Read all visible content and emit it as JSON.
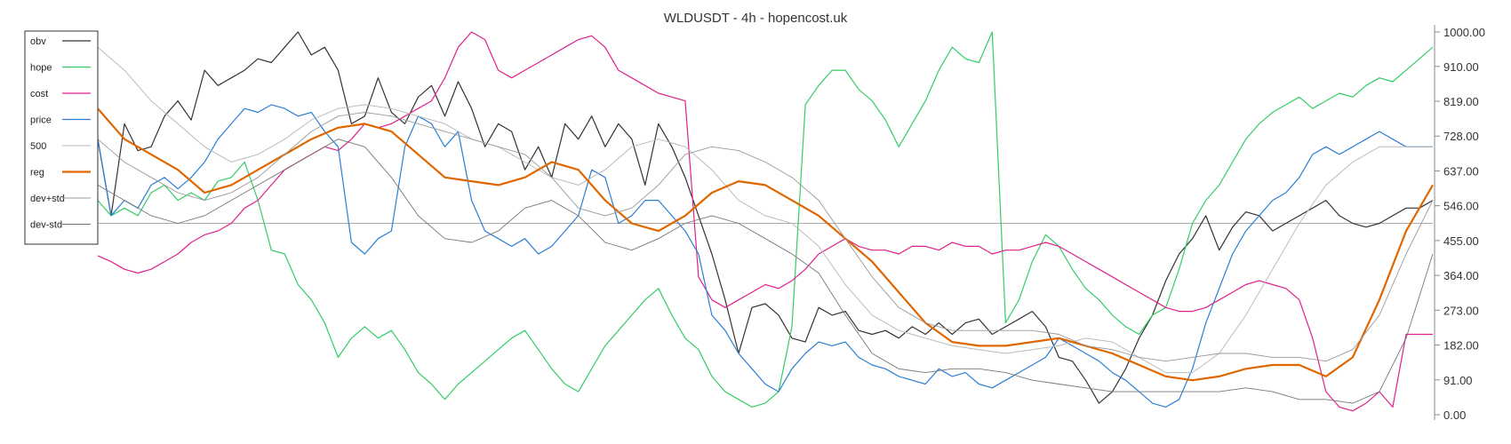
{
  "chart_data": {
    "type": "line",
    "title": "WLDUSDT - 4h - hopencost.uk",
    "xlabel": "",
    "ylabel": "",
    "ylim": [
      0,
      1000
    ],
    "y_ticks": [
      "0.00",
      "91.00",
      "182.00",
      "273.00",
      "364.00",
      "455.00",
      "546.00",
      "637.00",
      "728.00",
      "819.00",
      "910.00",
      "1000.00"
    ],
    "y_tick_values": [
      0,
      91,
      182,
      273,
      364,
      455,
      546,
      637,
      728,
      819,
      910,
      1000
    ],
    "x_range": [
      0,
      100
    ],
    "hline": 500,
    "grid": false,
    "legend_position": "top-left",
    "series": [
      {
        "name": "obv",
        "color": "#333333",
        "width": 1.2,
        "x": [
          0,
          1,
          2,
          3,
          4,
          5,
          6,
          7,
          8,
          9,
          10,
          11,
          12,
          13,
          14,
          15,
          16,
          17,
          18,
          19,
          20,
          21,
          22,
          23,
          24,
          25,
          26,
          27,
          28,
          29,
          30,
          31,
          32,
          33,
          34,
          35,
          36,
          37,
          38,
          39,
          40,
          41,
          42,
          43,
          44,
          45,
          46,
          47,
          48,
          49,
          50,
          51,
          52,
          53,
          54,
          55,
          56,
          57,
          58,
          59,
          60,
          61,
          62,
          63,
          64,
          65,
          66,
          67,
          68,
          69,
          70,
          71,
          72,
          73,
          74,
          75,
          76,
          77,
          78,
          79,
          80,
          81,
          82,
          83,
          84,
          85,
          86,
          87,
          88,
          89,
          90,
          91,
          92,
          93,
          94,
          95,
          96,
          97,
          98,
          99,
          100
        ],
        "values": [
          720,
          520,
          760,
          690,
          700,
          780,
          820,
          770,
          900,
          860,
          880,
          900,
          930,
          920,
          960,
          1000,
          940,
          960,
          900,
          760,
          780,
          880,
          790,
          760,
          830,
          860,
          780,
          870,
          800,
          700,
          760,
          740,
          640,
          700,
          620,
          760,
          720,
          780,
          700,
          760,
          720,
          600,
          760,
          700,
          620,
          520,
          420,
          300,
          160,
          280,
          290,
          260,
          200,
          190,
          280,
          260,
          270,
          220,
          210,
          220,
          200,
          230,
          210,
          240,
          210,
          240,
          250,
          210,
          230,
          250,
          270,
          230,
          150,
          140,
          90,
          30,
          60,
          120,
          200,
          260,
          350,
          420,
          460,
          520,
          430,
          490,
          530,
          520,
          480,
          500,
          520,
          540,
          560,
          520,
          500,
          490,
          500,
          520,
          540,
          540,
          560
        ]
      },
      {
        "name": "hope",
        "color": "#33cc66",
        "width": 1.2,
        "x": [
          0,
          1,
          2,
          3,
          4,
          5,
          6,
          7,
          8,
          9,
          10,
          11,
          12,
          13,
          14,
          15,
          16,
          17,
          18,
          19,
          20,
          21,
          22,
          23,
          24,
          25,
          26,
          27,
          28,
          29,
          30,
          31,
          32,
          33,
          34,
          35,
          36,
          37,
          38,
          39,
          40,
          41,
          42,
          43,
          44,
          45,
          46,
          47,
          48,
          49,
          50,
          51,
          52,
          53,
          54,
          55,
          56,
          57,
          58,
          59,
          60,
          61,
          62,
          63,
          64,
          65,
          66,
          67,
          68,
          69,
          70,
          71,
          72,
          73,
          74,
          75,
          76,
          77,
          78,
          79,
          80,
          81,
          82,
          83,
          84,
          85,
          86,
          87,
          88,
          89,
          90,
          91,
          92,
          93,
          94,
          95,
          96,
          97,
          98,
          99,
          100
        ],
        "values": [
          560,
          520,
          540,
          520,
          580,
          600,
          560,
          580,
          560,
          610,
          620,
          660,
          560,
          430,
          420,
          340,
          300,
          240,
          150,
          200,
          230,
          200,
          220,
          170,
          110,
          80,
          40,
          80,
          110,
          140,
          170,
          200,
          220,
          170,
          120,
          80,
          60,
          120,
          180,
          220,
          260,
          300,
          330,
          260,
          200,
          170,
          100,
          60,
          40,
          20,
          30,
          60,
          230,
          810,
          860,
          900,
          900,
          850,
          820,
          770,
          700,
          760,
          820,
          900,
          960,
          930,
          920,
          1000,
          240,
          300,
          400,
          470,
          440,
          380,
          330,
          300,
          260,
          230,
          210,
          260,
          280,
          380,
          500,
          560,
          600,
          660,
          720,
          760,
          790,
          810,
          830,
          800,
          820,
          840,
          830,
          860,
          880,
          870,
          900,
          930,
          960
        ]
      },
      {
        "name": "cost",
        "color": "#e0218a",
        "width": 1.2,
        "x": [
          0,
          1,
          2,
          3,
          4,
          5,
          6,
          7,
          8,
          9,
          10,
          11,
          12,
          13,
          14,
          15,
          16,
          17,
          18,
          19,
          20,
          21,
          22,
          23,
          24,
          25,
          26,
          27,
          28,
          29,
          30,
          31,
          32,
          33,
          34,
          35,
          36,
          37,
          38,
          39,
          40,
          41,
          42,
          43,
          44,
          45,
          46,
          47,
          48,
          49,
          50,
          51,
          52,
          53,
          54,
          55,
          56,
          57,
          58,
          59,
          60,
          61,
          62,
          63,
          64,
          65,
          66,
          67,
          68,
          69,
          70,
          71,
          72,
          73,
          74,
          75,
          76,
          77,
          78,
          79,
          80,
          81,
          82,
          83,
          84,
          85,
          86,
          87,
          88,
          89,
          90,
          91,
          92,
          93,
          94,
          95,
          96,
          97,
          98,
          99,
          100
        ],
        "values": [
          415,
          400,
          380,
          370,
          380,
          400,
          420,
          450,
          470,
          480,
          500,
          540,
          560,
          600,
          640,
          660,
          680,
          700,
          690,
          720,
          760,
          750,
          760,
          780,
          800,
          820,
          880,
          960,
          1000,
          980,
          900,
          880,
          900,
          920,
          940,
          960,
          980,
          990,
          960,
          900,
          880,
          860,
          840,
          830,
          820,
          360,
          300,
          280,
          300,
          320,
          340,
          330,
          350,
          380,
          420,
          440,
          460,
          440,
          430,
          430,
          420,
          440,
          440,
          430,
          450,
          440,
          440,
          420,
          430,
          430,
          440,
          450,
          440,
          420,
          400,
          380,
          360,
          340,
          320,
          300,
          280,
          270,
          270,
          280,
          300,
          320,
          340,
          350,
          340,
          330,
          300,
          200,
          60,
          20,
          10,
          30,
          60,
          20,
          210,
          210,
          210
        ]
      },
      {
        "name": "price",
        "color": "#2a7fd4",
        "width": 1.2,
        "x": [
          0,
          1,
          2,
          3,
          4,
          5,
          6,
          7,
          8,
          9,
          10,
          11,
          12,
          13,
          14,
          15,
          16,
          17,
          18,
          19,
          20,
          21,
          22,
          23,
          24,
          25,
          26,
          27,
          28,
          29,
          30,
          31,
          32,
          33,
          34,
          35,
          36,
          37,
          38,
          39,
          40,
          41,
          42,
          43,
          44,
          45,
          46,
          47,
          48,
          49,
          50,
          51,
          52,
          53,
          54,
          55,
          56,
          57,
          58,
          59,
          60,
          61,
          62,
          63,
          64,
          65,
          66,
          67,
          68,
          69,
          70,
          71,
          72,
          73,
          74,
          75,
          76,
          77,
          78,
          79,
          80,
          81,
          82,
          83,
          84,
          85,
          86,
          87,
          88,
          89,
          90,
          91,
          92,
          93,
          94,
          95,
          96,
          97,
          98,
          99,
          100
        ],
        "values": [
          720,
          520,
          560,
          540,
          600,
          620,
          590,
          620,
          660,
          720,
          760,
          800,
          790,
          810,
          800,
          780,
          790,
          740,
          700,
          450,
          420,
          460,
          480,
          700,
          780,
          760,
          700,
          740,
          560,
          480,
          460,
          440,
          460,
          420,
          440,
          480,
          520,
          640,
          620,
          500,
          520,
          560,
          560,
          520,
          480,
          420,
          260,
          220,
          160,
          120,
          80,
          60,
          120,
          160,
          190,
          180,
          190,
          150,
          130,
          120,
          100,
          90,
          80,
          120,
          100,
          110,
          80,
          70,
          90,
          110,
          130,
          150,
          200,
          180,
          160,
          140,
          110,
          90,
          60,
          30,
          20,
          40,
          120,
          240,
          330,
          420,
          480,
          520,
          560,
          580,
          620,
          680,
          700,
          680,
          700,
          720,
          740,
          720,
          700,
          700,
          700
        ]
      },
      {
        "name": "500",
        "color": "#bbbbbb",
        "width": 1.0,
        "x": [
          0,
          2,
          4,
          6,
          8,
          10,
          12,
          14,
          16,
          18,
          20,
          22,
          24,
          26,
          28,
          30,
          32,
          34,
          36,
          38,
          40,
          42,
          44,
          46,
          48,
          50,
          52,
          54,
          56,
          58,
          60,
          62,
          64,
          66,
          68,
          70,
          72,
          74,
          76,
          78,
          80,
          82,
          84,
          86,
          88,
          90,
          92,
          94,
          96,
          98,
          100
        ],
        "values": [
          960,
          900,
          820,
          760,
          700,
          660,
          680,
          720,
          770,
          800,
          810,
          800,
          780,
          760,
          720,
          700,
          660,
          620,
          600,
          640,
          700,
          720,
          700,
          640,
          560,
          520,
          500,
          440,
          340,
          260,
          220,
          200,
          180,
          170,
          160,
          170,
          180,
          200,
          190,
          150,
          110,
          110,
          160,
          260,
          380,
          500,
          600,
          660,
          700,
          700,
          700
        ]
      },
      {
        "name": "reg",
        "color": "#e06600",
        "width": 2.2,
        "x": [
          0,
          2,
          4,
          6,
          8,
          10,
          12,
          14,
          16,
          18,
          20,
          22,
          24,
          26,
          28,
          30,
          32,
          34,
          36,
          38,
          40,
          42,
          44,
          46,
          48,
          50,
          52,
          54,
          56,
          58,
          60,
          62,
          64,
          66,
          68,
          70,
          72,
          74,
          76,
          78,
          80,
          82,
          84,
          86,
          88,
          90,
          92,
          94,
          96,
          98,
          100
        ],
        "values": [
          800,
          720,
          680,
          640,
          580,
          600,
          640,
          680,
          720,
          750,
          760,
          740,
          680,
          620,
          610,
          600,
          620,
          660,
          640,
          560,
          500,
          480,
          520,
          580,
          610,
          600,
          560,
          520,
          460,
          400,
          320,
          240,
          190,
          180,
          180,
          190,
          200,
          180,
          160,
          130,
          100,
          90,
          100,
          120,
          130,
          130,
          100,
          150,
          300,
          480,
          600
        ]
      },
      {
        "name": "dev+std",
        "color": "#999999",
        "width": 0.9,
        "x": [
          0,
          2,
          4,
          6,
          8,
          10,
          12,
          14,
          16,
          18,
          20,
          22,
          24,
          26,
          28,
          30,
          32,
          34,
          36,
          38,
          40,
          42,
          44,
          46,
          48,
          50,
          52,
          54,
          56,
          58,
          60,
          62,
          64,
          66,
          68,
          70,
          72,
          74,
          76,
          78,
          80,
          82,
          84,
          86,
          88,
          90,
          92,
          94,
          96,
          98,
          100
        ],
        "values": [
          720,
          660,
          620,
          580,
          560,
          580,
          620,
          680,
          740,
          780,
          790,
          780,
          760,
          740,
          720,
          700,
          680,
          620,
          540,
          520,
          540,
          600,
          680,
          700,
          690,
          660,
          620,
          560,
          460,
          360,
          280,
          240,
          220,
          220,
          220,
          220,
          210,
          180,
          170,
          150,
          140,
          150,
          160,
          160,
          150,
          150,
          140,
          170,
          260,
          420,
          560
        ]
      },
      {
        "name": "dev-std",
        "color": "#777777",
        "width": 0.9,
        "x": [
          0,
          2,
          4,
          6,
          8,
          10,
          12,
          14,
          16,
          18,
          20,
          22,
          24,
          26,
          28,
          30,
          32,
          34,
          36,
          38,
          40,
          42,
          44,
          46,
          48,
          50,
          52,
          54,
          56,
          58,
          60,
          62,
          64,
          66,
          68,
          70,
          72,
          74,
          76,
          78,
          80,
          82,
          84,
          86,
          88,
          90,
          92,
          94,
          96,
          98,
          100
        ],
        "values": [
          600,
          560,
          520,
          500,
          520,
          560,
          600,
          640,
          680,
          720,
          700,
          620,
          520,
          460,
          450,
          480,
          540,
          560,
          520,
          450,
          430,
          460,
          500,
          520,
          500,
          460,
          420,
          370,
          260,
          160,
          120,
          110,
          120,
          120,
          110,
          90,
          80,
          70,
          60,
          60,
          60,
          60,
          60,
          70,
          60,
          40,
          40,
          30,
          60,
          200,
          420
        ]
      }
    ]
  }
}
